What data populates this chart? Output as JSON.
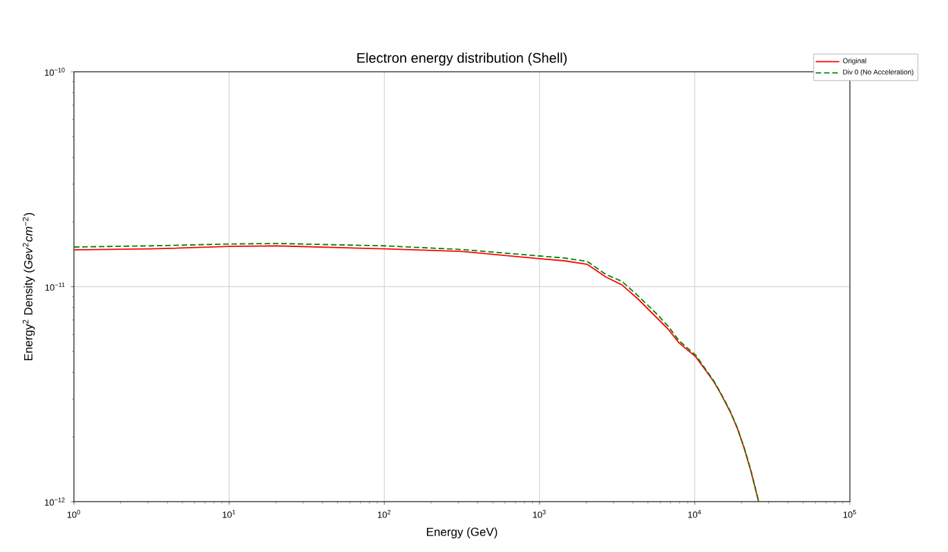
{
  "chart_data": {
    "type": "line",
    "title": "Electron energy distribution (Shell)",
    "xlabel": "Energy (GeV)",
    "ylabel": "Energy$^{2}$ Density (*Gev*$^{2}$*cm*$^{−2}$)",
    "x": [
      1,
      3.16,
      10,
      20,
      100,
      316,
      1000,
      1449,
      2033,
      2680,
      3396,
      4296,
      5667,
      6745,
      7945,
      10160,
      13270,
      14690,
      16980,
      18800,
      20850,
      23070,
      25830
    ],
    "series": [
      {
        "name": "Original",
        "color": "#ff0000",
        "line_style": "solid",
        "values": [
          1.485e-11,
          1.5e-11,
          1.54e-11,
          1.55e-11,
          1.5e-11,
          1.46e-11,
          1.35e-11,
          1.32e-11,
          1.27e-11,
          1.11e-11,
          1.02e-11,
          8.79e-12,
          7.2e-12,
          6.35e-12,
          5.47e-12,
          4.72e-12,
          3.62e-12,
          3.19e-12,
          2.61e-12,
          2.2e-12,
          1.77e-12,
          1.38e-12,
          1e-12
        ]
      },
      {
        "name": "Div 0 (No Acceleration)",
        "color": "#008000",
        "line_style": "dashed",
        "values": [
          1.53e-11,
          1.55e-11,
          1.58e-11,
          1.59e-11,
          1.55e-11,
          1.49e-11,
          1.39e-11,
          1.36e-11,
          1.31e-11,
          1.14e-11,
          1.06e-11,
          9.1e-12,
          7.5e-12,
          6.55e-12,
          5.6e-12,
          4.8e-12,
          3.65e-12,
          3.21e-12,
          2.63e-12,
          2.21e-12,
          1.78e-12,
          1.39e-12,
          1e-12
        ]
      }
    ],
    "log": "xy",
    "xlim": [
      1,
      100000
    ],
    "ylim": [
      1e-12,
      1e-10
    ],
    "xticks": [
      {
        "value": 1,
        "label": "10$^{0}$"
      },
      {
        "value": 10,
        "label": "10$^{1}$"
      },
      {
        "value": 100,
        "label": "10$^{2}$"
      },
      {
        "value": 1000,
        "label": "10$^{3}$"
      },
      {
        "value": 10000,
        "label": "10$^{4}$"
      },
      {
        "value": 100000,
        "label": "10$^{5}$"
      }
    ],
    "yticks": [
      {
        "value": 1e-12,
        "label": "10$^{−12}$"
      },
      {
        "value": 1e-11,
        "label": "10$^{−11}$"
      },
      {
        "value": 1e-10,
        "label": "10$^{−10}$"
      }
    ],
    "grid": true,
    "legend": "top right"
  }
}
